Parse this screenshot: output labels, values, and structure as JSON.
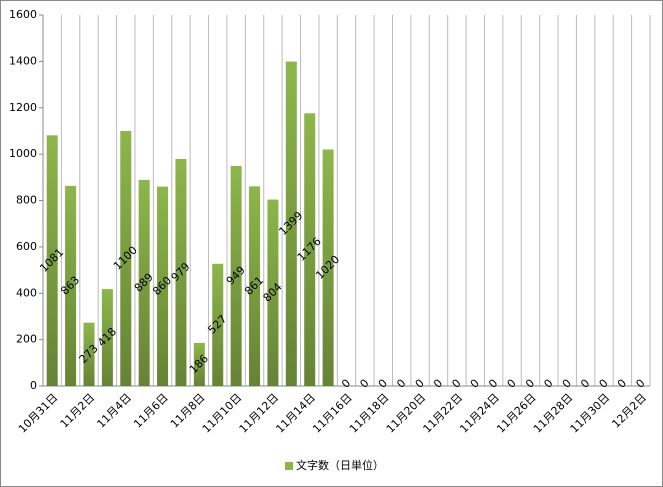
{
  "chart_data": {
    "type": "bar",
    "categories": [
      "10月31日",
      null,
      "11月2日",
      null,
      "11月4日",
      null,
      "11月6日",
      null,
      "11月8日",
      null,
      "11月10日",
      null,
      "11月12日",
      null,
      "11月14日",
      null,
      "11月16日",
      null,
      "11月18日",
      null,
      "11月20日",
      null,
      "11月22日",
      null,
      "11月24日",
      null,
      "11月26日",
      null,
      "11月28日",
      null,
      "11月30日",
      null,
      "12月2日"
    ],
    "series": [
      {
        "name": "文字数（日単位）",
        "color": "#8db64a",
        "values": [
          1081,
          863,
          273,
          418,
          1100,
          889,
          860,
          979,
          186,
          527,
          949,
          861,
          804,
          1399,
          1176,
          1020,
          0,
          0,
          0,
          0,
          0,
          0,
          0,
          0,
          0,
          0,
          0,
          0,
          0,
          0,
          0,
          0,
          0
        ]
      }
    ],
    "ylim": [
      0,
      1600
    ],
    "yticks": [
      0,
      200,
      400,
      600,
      800,
      1000,
      1200,
      1400,
      1600
    ],
    "grid": "vertical",
    "legend": "bottom"
  }
}
